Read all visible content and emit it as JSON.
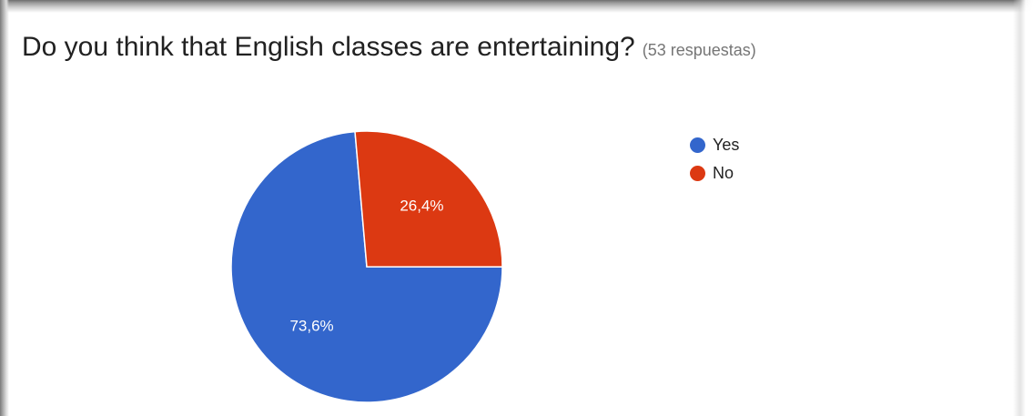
{
  "question": {
    "title": "Do you think that English classes are entertaining?",
    "response_count": "(53 respuestas)"
  },
  "chart_data": {
    "type": "pie",
    "labels": [
      "Yes",
      "No"
    ],
    "values": [
      73.6,
      26.4
    ],
    "value_labels": [
      "73,6%",
      "26,4%"
    ],
    "colors": [
      "#3366cc",
      "#dc3912"
    ],
    "legend_position": "right",
    "start_angle_deg": -5
  }
}
